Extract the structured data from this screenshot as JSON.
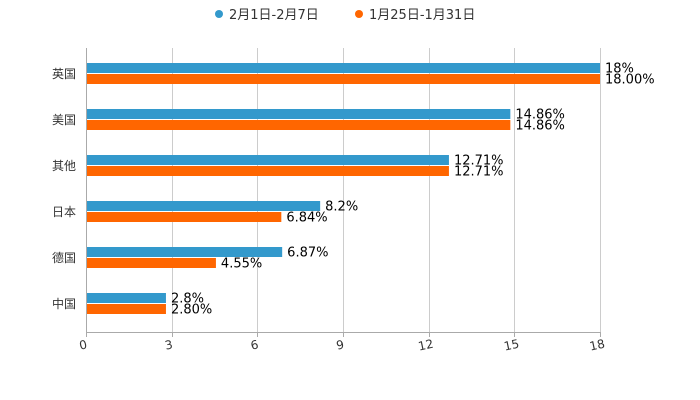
{
  "chart_data": {
    "type": "bar",
    "orientation": "horizontal",
    "title": "",
    "xlabel": "",
    "ylabel": "",
    "xlim": [
      0,
      18
    ],
    "x_ticks": [
      "0",
      "3",
      "6",
      "9",
      "12",
      "15",
      "18"
    ],
    "tick_values": [
      0,
      3,
      6,
      9,
      12,
      15,
      18
    ],
    "grid": true,
    "legend_position": "top-center",
    "categories": [
      "英国",
      "美国",
      "其他",
      "日本",
      "德国",
      "中国"
    ],
    "series": [
      {
        "name": "2月1日-2月7日",
        "color": "#3399cc",
        "values": [
          18,
          14.86,
          12.71,
          8.2,
          6.87,
          2.8
        ],
        "labels": [
          "18%",
          "14.86%",
          "12.71%",
          "8.2%",
          "6.87%",
          "2.8%"
        ]
      },
      {
        "name": "1月25日-1月31日",
        "color": "#ff6600",
        "values": [
          18.0,
          14.86,
          12.71,
          6.84,
          4.55,
          2.8
        ],
        "labels": [
          "18.00%",
          "14.86%",
          "12.71%",
          "6.84%",
          "4.55%",
          "2.80%"
        ]
      }
    ]
  }
}
